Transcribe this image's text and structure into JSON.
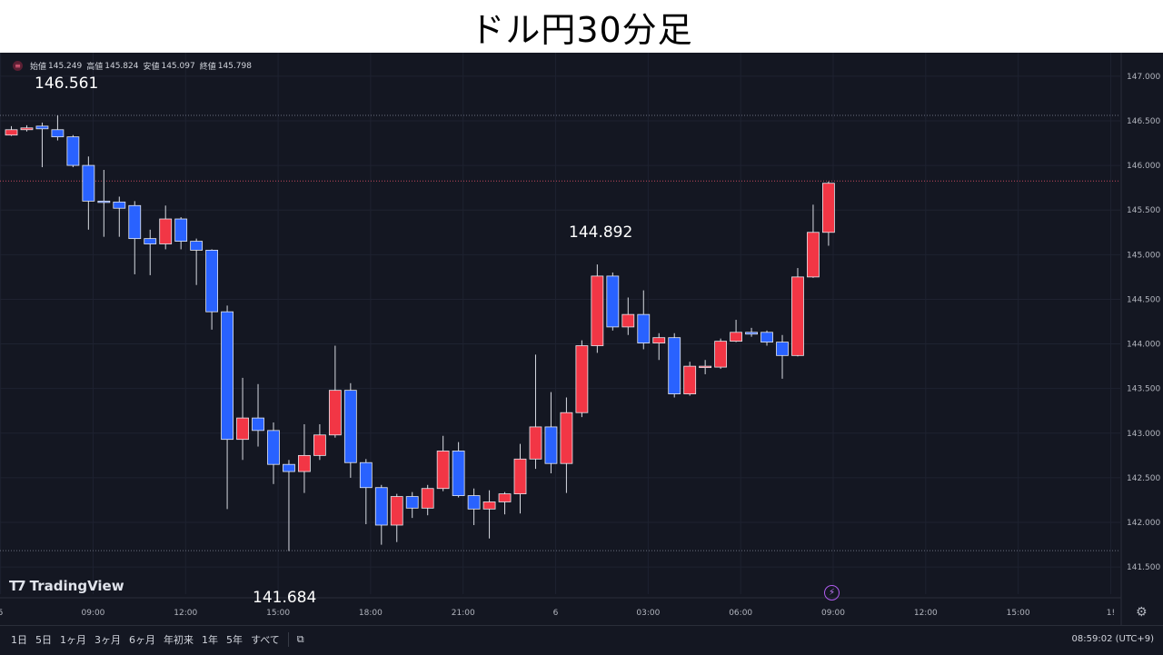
{
  "page_title": "ドル円30分足",
  "ohlc": {
    "open_label": "始値",
    "open": "145.249",
    "high_label": "高値",
    "high": "145.824",
    "low_label": "安値",
    "low": "145.097",
    "close_label": "終値",
    "close": "145.798"
  },
  "annotations": {
    "high_value": "146.561",
    "low_value": "141.684",
    "mid_value": "144.892"
  },
  "brand": {
    "name": "TradingView"
  },
  "time_ranges": [
    "1日",
    "5日",
    "1ヶ月",
    "3ヶ月",
    "6ヶ月",
    "年初来",
    "1年",
    "5年",
    "すべて"
  ],
  "clock": "08:59:02 (UTC+9)",
  "icons": {
    "symbol": "symbol-icon",
    "calendar": "calendar-icon",
    "bolt": "bolt-icon",
    "settings": "gear-icon"
  },
  "colors": {
    "up": "#f23645",
    "down": "#2962ff",
    "background": "#141722"
  },
  "chart_data": {
    "type": "candlestick",
    "title": "ドル円30分足",
    "ylim": [
      141.4,
      147.1
    ],
    "y_ticks": [
      "147.000",
      "146.500",
      "146.000",
      "145.500",
      "145.000",
      "144.500",
      "144.000",
      "143.500",
      "143.000",
      "142.500",
      "142.000",
      "141.500"
    ],
    "x_ticks": [
      {
        "label": "5",
        "index": -0.7
      },
      {
        "label": "09:00",
        "index": 5.3
      },
      {
        "label": "12:00",
        "index": 11.3
      },
      {
        "label": "15:00",
        "index": 17.3
      },
      {
        "label": "18:00",
        "index": 23.3
      },
      {
        "label": "21:00",
        "index": 29.3
      },
      {
        "label": "6",
        "index": 35.3
      },
      {
        "label": "03:00",
        "index": 41.3
      },
      {
        "label": "06:00",
        "index": 47.3
      },
      {
        "label": "09:00",
        "index": 53.3
      },
      {
        "label": "12:00",
        "index": 59.3
      },
      {
        "label": "15:00",
        "index": 65.3
      },
      {
        "label": "1!",
        "index": 71.3
      }
    ],
    "reference_lines": [
      {
        "value": 146.561,
        "style": "dotted"
      },
      {
        "value": 145.825,
        "style": "dotted-red"
      },
      {
        "value": 141.684,
        "style": "dotted"
      }
    ],
    "candles": [
      {
        "o": 146.34,
        "h": 146.44,
        "l": 146.33,
        "c": 146.4
      },
      {
        "o": 146.4,
        "h": 146.45,
        "l": 146.38,
        "c": 146.42
      },
      {
        "o": 146.44,
        "h": 146.48,
        "l": 145.98,
        "c": 146.41
      },
      {
        "o": 146.4,
        "h": 146.56,
        "l": 146.28,
        "c": 146.32
      },
      {
        "o": 146.32,
        "h": 146.34,
        "l": 145.98,
        "c": 146.0
      },
      {
        "o": 146.0,
        "h": 146.1,
        "l": 145.28,
        "c": 145.6
      },
      {
        "o": 145.6,
        "h": 145.95,
        "l": 145.2,
        "c": 145.59
      },
      {
        "o": 145.59,
        "h": 145.65,
        "l": 145.2,
        "c": 145.52
      },
      {
        "o": 145.55,
        "h": 145.6,
        "l": 144.78,
        "c": 145.18
      },
      {
        "o": 145.18,
        "h": 145.28,
        "l": 144.77,
        "c": 145.12
      },
      {
        "o": 145.12,
        "h": 145.55,
        "l": 145.06,
        "c": 145.4
      },
      {
        "o": 145.4,
        "h": 145.42,
        "l": 145.06,
        "c": 145.15
      },
      {
        "o": 145.15,
        "h": 145.18,
        "l": 144.66,
        "c": 145.05
      },
      {
        "o": 145.05,
        "h": 145.06,
        "l": 144.16,
        "c": 144.36
      },
      {
        "o": 144.36,
        "h": 144.43,
        "l": 142.15,
        "c": 142.93
      },
      {
        "o": 142.93,
        "h": 143.62,
        "l": 142.7,
        "c": 143.17
      },
      {
        "o": 143.17,
        "h": 143.55,
        "l": 142.85,
        "c": 143.03
      },
      {
        "o": 143.03,
        "h": 143.12,
        "l": 142.43,
        "c": 142.65
      },
      {
        "o": 142.65,
        "h": 142.7,
        "l": 141.68,
        "c": 142.57
      },
      {
        "o": 142.57,
        "h": 143.1,
        "l": 142.33,
        "c": 142.75
      },
      {
        "o": 142.75,
        "h": 143.1,
        "l": 142.7,
        "c": 142.98
      },
      {
        "o": 142.98,
        "h": 143.98,
        "l": 142.95,
        "c": 143.48
      },
      {
        "o": 143.48,
        "h": 143.56,
        "l": 142.5,
        "c": 142.67
      },
      {
        "o": 142.67,
        "h": 142.71,
        "l": 141.98,
        "c": 142.39
      },
      {
        "o": 142.39,
        "h": 142.42,
        "l": 141.75,
        "c": 141.97
      },
      {
        "o": 141.97,
        "h": 142.32,
        "l": 141.78,
        "c": 142.29
      },
      {
        "o": 142.29,
        "h": 142.34,
        "l": 142.05,
        "c": 142.16
      },
      {
        "o": 142.16,
        "h": 142.42,
        "l": 142.08,
        "c": 142.38
      },
      {
        "o": 142.38,
        "h": 142.97,
        "l": 142.35,
        "c": 142.8
      },
      {
        "o": 142.8,
        "h": 142.9,
        "l": 142.28,
        "c": 142.3
      },
      {
        "o": 142.3,
        "h": 142.38,
        "l": 141.97,
        "c": 142.15
      },
      {
        "o": 142.15,
        "h": 142.36,
        "l": 141.82,
        "c": 142.23
      },
      {
        "o": 142.23,
        "h": 142.34,
        "l": 142.09,
        "c": 142.32
      },
      {
        "o": 142.32,
        "h": 142.88,
        "l": 142.1,
        "c": 142.71
      },
      {
        "o": 142.71,
        "h": 143.88,
        "l": 142.6,
        "c": 143.07
      },
      {
        "o": 143.07,
        "h": 143.46,
        "l": 142.55,
        "c": 142.66
      },
      {
        "o": 142.66,
        "h": 143.4,
        "l": 142.33,
        "c": 143.23
      },
      {
        "o": 143.23,
        "h": 144.04,
        "l": 143.18,
        "c": 143.98
      },
      {
        "o": 143.98,
        "h": 144.89,
        "l": 143.9,
        "c": 144.76
      },
      {
        "o": 144.76,
        "h": 144.8,
        "l": 144.15,
        "c": 144.19
      },
      {
        "o": 144.19,
        "h": 144.52,
        "l": 144.1,
        "c": 144.33
      },
      {
        "o": 144.33,
        "h": 144.6,
        "l": 143.94,
        "c": 144.01
      },
      {
        "o": 144.01,
        "h": 144.12,
        "l": 143.82,
        "c": 144.07
      },
      {
        "o": 144.07,
        "h": 144.12,
        "l": 143.4,
        "c": 143.44
      },
      {
        "o": 143.44,
        "h": 143.8,
        "l": 143.42,
        "c": 143.75
      },
      {
        "o": 143.75,
        "h": 143.82,
        "l": 143.66,
        "c": 143.75
      },
      {
        "o": 143.74,
        "h": 144.06,
        "l": 143.72,
        "c": 144.03
      },
      {
        "o": 144.03,
        "h": 144.27,
        "l": 144.02,
        "c": 144.13
      },
      {
        "o": 144.13,
        "h": 144.18,
        "l": 144.08,
        "c": 144.11
      },
      {
        "o": 144.13,
        "h": 144.15,
        "l": 143.98,
        "c": 144.02
      },
      {
        "o": 144.02,
        "h": 144.1,
        "l": 143.61,
        "c": 143.87
      },
      {
        "o": 143.87,
        "h": 144.85,
        "l": 143.86,
        "c": 144.75
      },
      {
        "o": 144.75,
        "h": 145.56,
        "l": 144.74,
        "c": 145.25
      },
      {
        "o": 145.25,
        "h": 145.82,
        "l": 145.1,
        "c": 145.8
      }
    ]
  }
}
